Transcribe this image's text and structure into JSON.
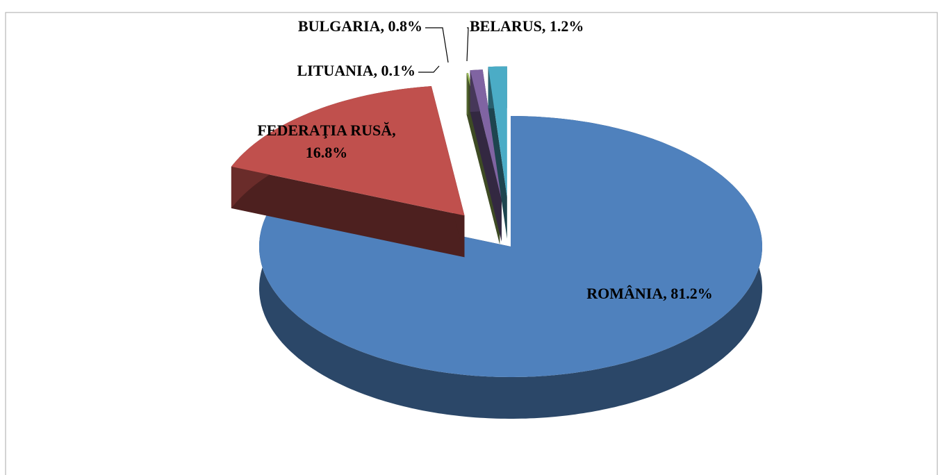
{
  "chart_data": {
    "type": "pie3d",
    "values": [
      81.2,
      16.8,
      0.1,
      0.8,
      1.2
    ],
    "value_labels": [
      "ROMÂNIA, 81.2%",
      "FEDERAŢIA RUSĂ, 16.8%",
      "LITUANIA, 0.1%",
      "BULGARIA, 0.8%",
      "BELARUS, 1.2%"
    ],
    "colors": [
      "#4f81bd",
      "#c0504d",
      "#9bbb59",
      "#8064a2",
      "#4bacc6"
    ]
  }
}
